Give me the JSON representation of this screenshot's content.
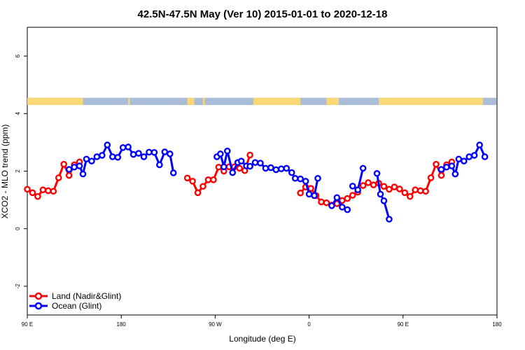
{
  "chart_data": {
    "type": "line",
    "title": "42.5N-47.5N May (Ver 10)   2015-01-01 to 2020-12-18",
    "xlabel": "Longitude (deg E)",
    "ylabel": "XCO2 - MLO trend (ppm)",
    "xlim": [
      -90,
      180
    ],
    "ylim": [
      -3,
      7
    ],
    "x_ticks": [
      {
        "value": -90,
        "label": "90 E"
      },
      {
        "value": -36,
        "label": "180"
      },
      {
        "value": 18,
        "label": "90 W"
      },
      {
        "value": 72,
        "label": "0"
      },
      {
        "value": 126,
        "label": "90 E"
      },
      {
        "value": 180,
        "label": "180"
      }
    ],
    "y_ticks": [
      -2,
      0,
      2,
      4,
      6
    ],
    "legend_position": "bottom-left",
    "land_ocean_strip": {
      "y_range": [
        4.3,
        4.55
      ],
      "land_color": "#fbd776",
      "ocean_color": "#a9bcd8",
      "land_segments": [
        [
          -90,
          -58
        ],
        [
          -32,
          -31
        ],
        [
          2,
          6
        ],
        [
          11,
          12
        ],
        [
          40,
          67
        ],
        [
          82,
          89
        ],
        [
          112,
          172
        ]
      ]
    },
    "series": [
      {
        "name": "Land (Nadir&Glint)",
        "color": "#ff0000",
        "segments": [
          [
            [
              -90,
              1.37
            ],
            [
              -87,
              1.25
            ],
            [
              -84,
              1.12
            ],
            [
              -81,
              1.35
            ],
            [
              -78,
              1.32
            ],
            [
              -75,
              1.3
            ],
            [
              -72,
              1.77
            ],
            [
              -69,
              2.24
            ],
            [
              -66,
              1.85
            ],
            [
              -63,
              2.22
            ],
            [
              -60,
              2.32
            ]
          ],
          [
            [
              2,
              1.76
            ],
            [
              5,
              1.65
            ],
            [
              8,
              1.25
            ],
            [
              11,
              1.47
            ],
            [
              14,
              1.7
            ],
            [
              17,
              1.7
            ],
            [
              20,
              2.14
            ],
            [
              23,
              2.0
            ]
          ],
          [
            [
              26,
              2.15
            ],
            [
              29,
              2.15
            ],
            [
              32,
              2.1
            ],
            [
              35,
              2.02
            ],
            [
              38,
              2.56
            ]
          ],
          [
            [
              67,
              1.24
            ],
            [
              70,
              1.45
            ],
            [
              73,
              1.4
            ],
            [
              76,
              1.15
            ],
            [
              79,
              0.93
            ],
            [
              82,
              0.9
            ],
            [
              85,
              0.82
            ]
          ],
          [
            [
              88,
              0.87
            ],
            [
              91,
              0.98
            ],
            [
              94,
              1.05
            ],
            [
              97,
              1.16
            ],
            [
              100,
              1.27
            ]
          ],
          [
            [
              103,
              1.5
            ],
            [
              106,
              1.6
            ],
            [
              109,
              1.52
            ],
            [
              112,
              1.58
            ],
            [
              115,
              1.47
            ],
            [
              118,
              1.37
            ],
            [
              121,
              1.45
            ],
            [
              124,
              1.38
            ],
            [
              127,
              1.25
            ],
            [
              130,
              1.12
            ],
            [
              133,
              1.35
            ],
            [
              136,
              1.32
            ],
            [
              139,
              1.3
            ],
            [
              142,
              1.77
            ],
            [
              145,
              2.24
            ],
            [
              148,
              1.85
            ],
            [
              151,
              2.22
            ],
            [
              154,
              2.32
            ]
          ]
        ]
      },
      {
        "name": "Ocean (Glint)",
        "color": "#0000ff",
        "segments": [
          [
            [
              -66,
              2.06
            ],
            [
              -63,
              2.14
            ],
            [
              -60,
              2.18
            ],
            [
              -58,
              1.9
            ],
            [
              -56,
              2.42
            ],
            [
              -53,
              2.35
            ],
            [
              -50,
              2.5
            ],
            [
              -47,
              2.55
            ],
            [
              -44,
              2.91
            ],
            [
              -41,
              2.5
            ],
            [
              -38,
              2.48
            ],
            [
              -35,
              2.82
            ],
            [
              -32,
              2.84
            ],
            [
              -29,
              2.58
            ],
            [
              -26,
              2.62
            ],
            [
              -23,
              2.5
            ],
            [
              -20,
              2.66
            ],
            [
              -17,
              2.65
            ],
            [
              -14,
              2.22
            ],
            [
              -11,
              2.67
            ],
            [
              -8,
              2.6
            ],
            [
              -6,
              1.94
            ]
          ],
          [
            [
              19,
              2.5
            ],
            [
              21,
              2.6
            ],
            [
              23,
              2.15
            ],
            [
              25,
              2.7
            ],
            [
              28,
              1.95
            ],
            [
              31,
              2.3
            ],
            [
              33,
              2.35
            ],
            [
              36,
              2.18
            ],
            [
              38,
              2.17
            ],
            [
              41,
              2.3
            ],
            [
              44,
              2.28
            ],
            [
              47,
              2.1
            ],
            [
              50,
              2.12
            ],
            [
              53,
              2.05
            ],
            [
              56,
              2.08
            ],
            [
              59,
              2.1
            ],
            [
              62,
              1.95
            ],
            [
              64,
              1.75
            ],
            [
              67,
              1.73
            ],
            [
              70,
              1.65
            ],
            [
              72,
              1.2
            ],
            [
              75,
              1.15
            ],
            [
              77,
              1.75
            ]
          ],
          [
            [
              85,
              0.8
            ],
            [
              88,
              1.08
            ],
            [
              91,
              0.75
            ],
            [
              94,
              0.66
            ]
          ],
          [
            [
              97,
              1.48
            ],
            [
              100,
              1.35
            ],
            [
              103,
              2.1
            ]
          ],
          [
            [
              111,
              1.92
            ],
            [
              113,
              1.2
            ],
            [
              115,
              0.97
            ],
            [
              118,
              0.33
            ]
          ],
          [
            [
              148,
              2.06
            ],
            [
              151,
              2.14
            ],
            [
              154,
              2.18
            ],
            [
              156,
              1.9
            ],
            [
              158,
              2.42
            ],
            [
              161,
              2.35
            ],
            [
              164,
              2.5
            ],
            [
              167,
              2.55
            ],
            [
              170,
              2.91
            ],
            [
              173,
              2.5
            ]
          ]
        ]
      }
    ]
  }
}
